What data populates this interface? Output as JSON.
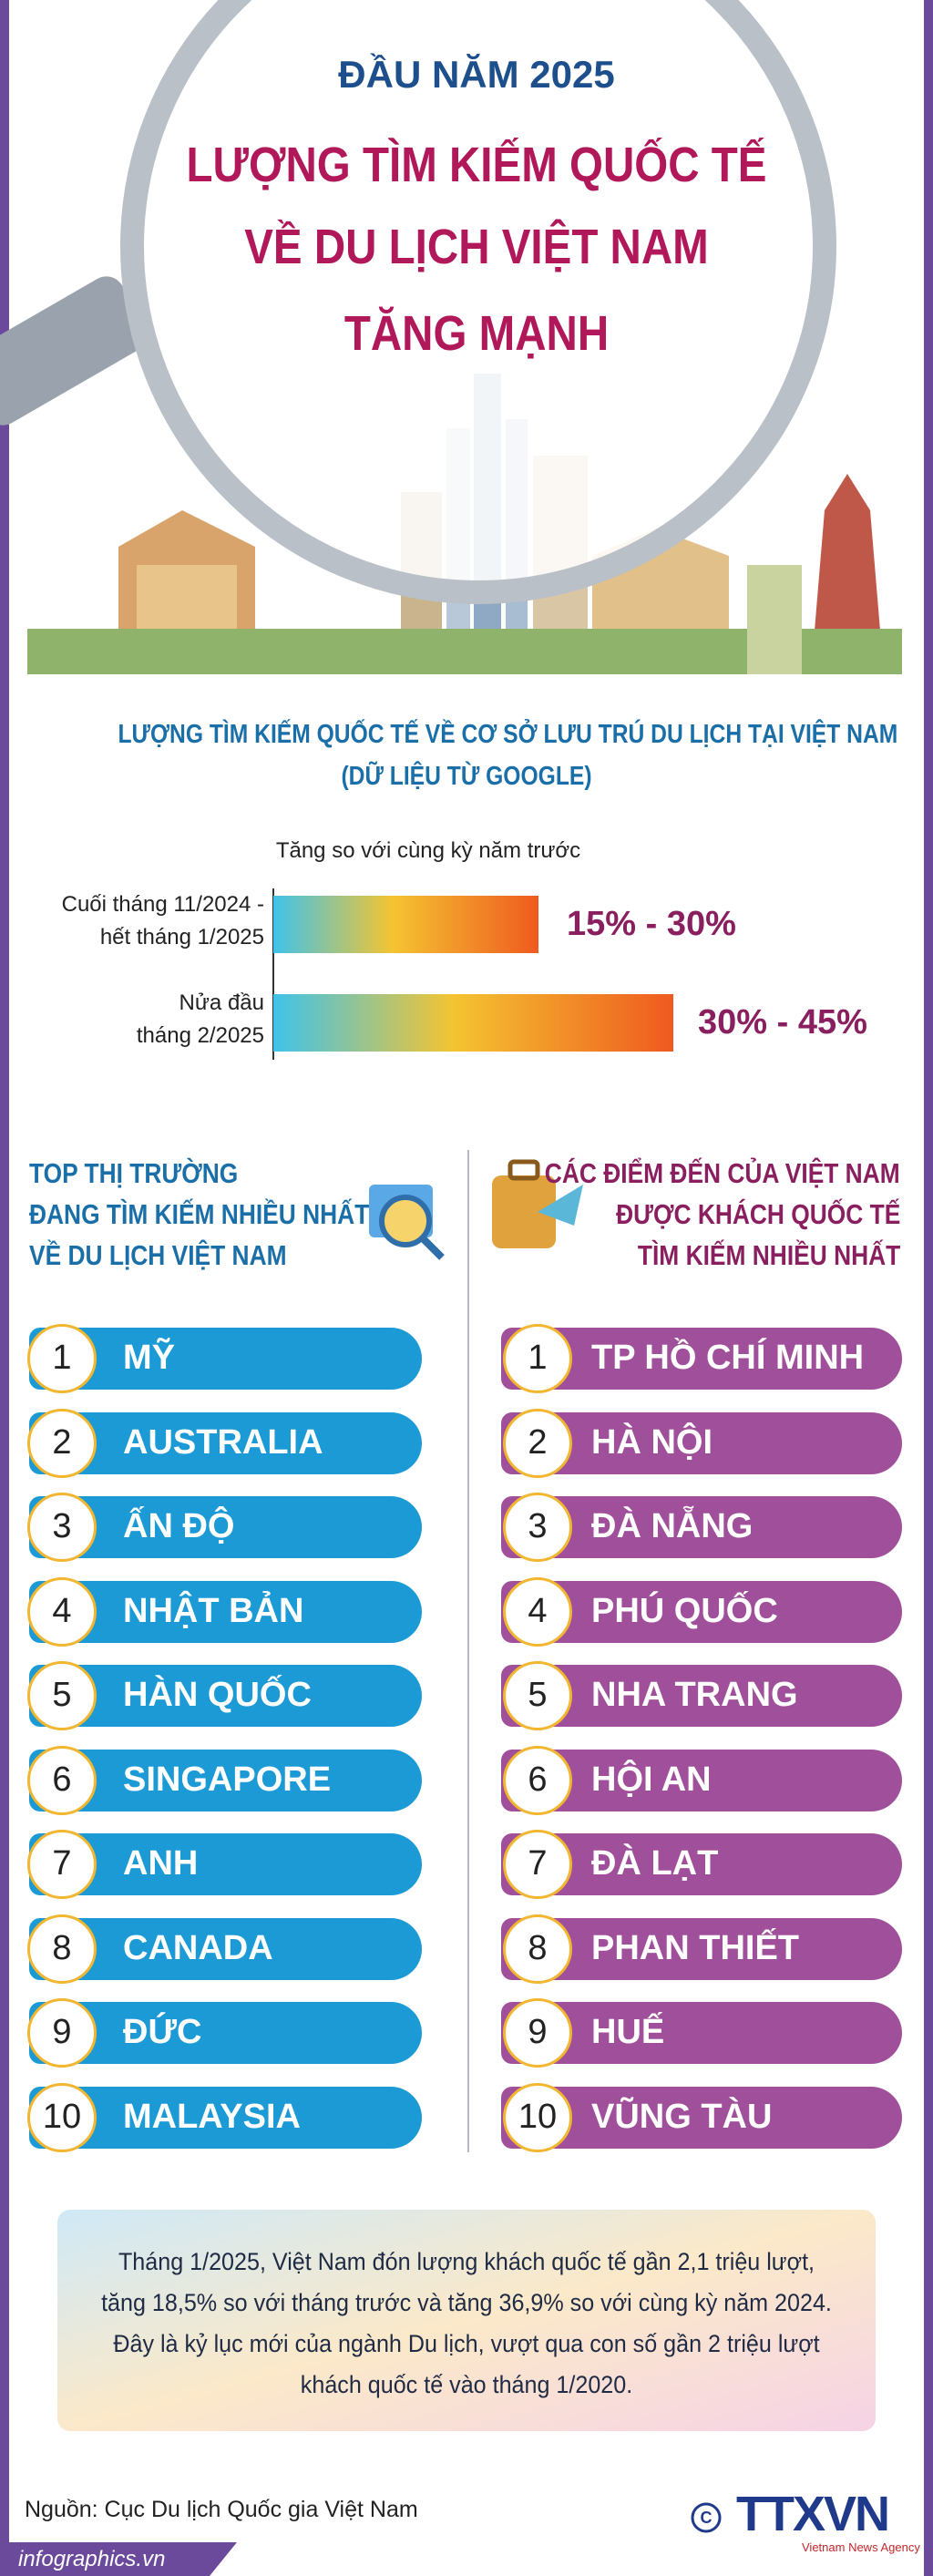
{
  "header": {
    "pretitle": "ĐẦU NĂM 2025",
    "title_lines": [
      "LƯỢNG TÌM KIẾM QUỐC TẾ",
      "VỀ DU LỊCH VIỆT NAM",
      "TĂNG MẠNH"
    ]
  },
  "search_chart": {
    "title": "LƯỢNG TÌM KIẾM QUỐC TẾ VỀ CƠ SỞ LƯU TRÚ DU LỊCH TẠI VIỆT NAM",
    "subtitle": "(DỮ LIỆU TỪ GOOGLE)",
    "caption": "Tăng so với cùng kỳ năm trước",
    "bars": [
      {
        "label_lines": [
          "Cuối tháng 11/2024 -",
          "hết tháng 1/2025"
        ],
        "range": "15% - 30%"
      },
      {
        "label_lines": [
          "Nửa đầu",
          "tháng 2/2025"
        ],
        "range": "30% - 45%"
      }
    ]
  },
  "markets": {
    "heading_lines": [
      "TOP THỊ TRƯỜNG",
      "ĐANG TÌM KIẾM NHIỀU NHẤT",
      "VỀ DU LỊCH VIỆT NAM"
    ],
    "items": [
      {
        "rank": 1,
        "name": "MỸ"
      },
      {
        "rank": 2,
        "name": "AUSTRALIA"
      },
      {
        "rank": 3,
        "name": "ẤN ĐỘ"
      },
      {
        "rank": 4,
        "name": "NHẬT BẢN"
      },
      {
        "rank": 5,
        "name": "HÀN QUỐC"
      },
      {
        "rank": 6,
        "name": "SINGAPORE"
      },
      {
        "rank": 7,
        "name": "ANH"
      },
      {
        "rank": 8,
        "name": "CANADA"
      },
      {
        "rank": 9,
        "name": "ĐỨC"
      },
      {
        "rank": 10,
        "name": "MALAYSIA"
      }
    ]
  },
  "destinations": {
    "heading_lines": [
      "CÁC ĐIỂM ĐẾN CỦA VIỆT NAM",
      "ĐƯỢC KHÁCH QUỐC TẾ",
      "TÌM KIẾM NHIỀU NHẤT"
    ],
    "items": [
      {
        "rank": 1,
        "name": "TP HỒ CHÍ MINH"
      },
      {
        "rank": 2,
        "name": "HÀ NỘI"
      },
      {
        "rank": 3,
        "name": "ĐÀ NẴNG"
      },
      {
        "rank": 4,
        "name": "PHÚ QUỐC"
      },
      {
        "rank": 5,
        "name": "NHA TRANG"
      },
      {
        "rank": 6,
        "name": "HỘI AN"
      },
      {
        "rank": 7,
        "name": "ĐÀ LẠT"
      },
      {
        "rank": 8,
        "name": "PHAN THIẾT"
      },
      {
        "rank": 9,
        "name": "HUẾ"
      },
      {
        "rank": 10,
        "name": "VŨNG TÀU"
      }
    ]
  },
  "note": {
    "lines": [
      "Tháng 1/2025, Việt Nam đón lượng khách quốc tế gần 2,1 triệu lượt,",
      "tăng 18,5% so với tháng trước và tăng 36,9% so với cùng kỳ năm 2024.",
      "Đây là kỷ lục mới của ngành Du lịch, vượt qua con số gần 2 triệu lượt",
      "khách quốc tế vào tháng 1/2020."
    ]
  },
  "source": "Nguồn: Cục Du lịch Quốc gia Việt Nam",
  "logo": "TTXVN",
  "logo_sub": "Vietnam News Agency",
  "site": "infographics.vn"
}
